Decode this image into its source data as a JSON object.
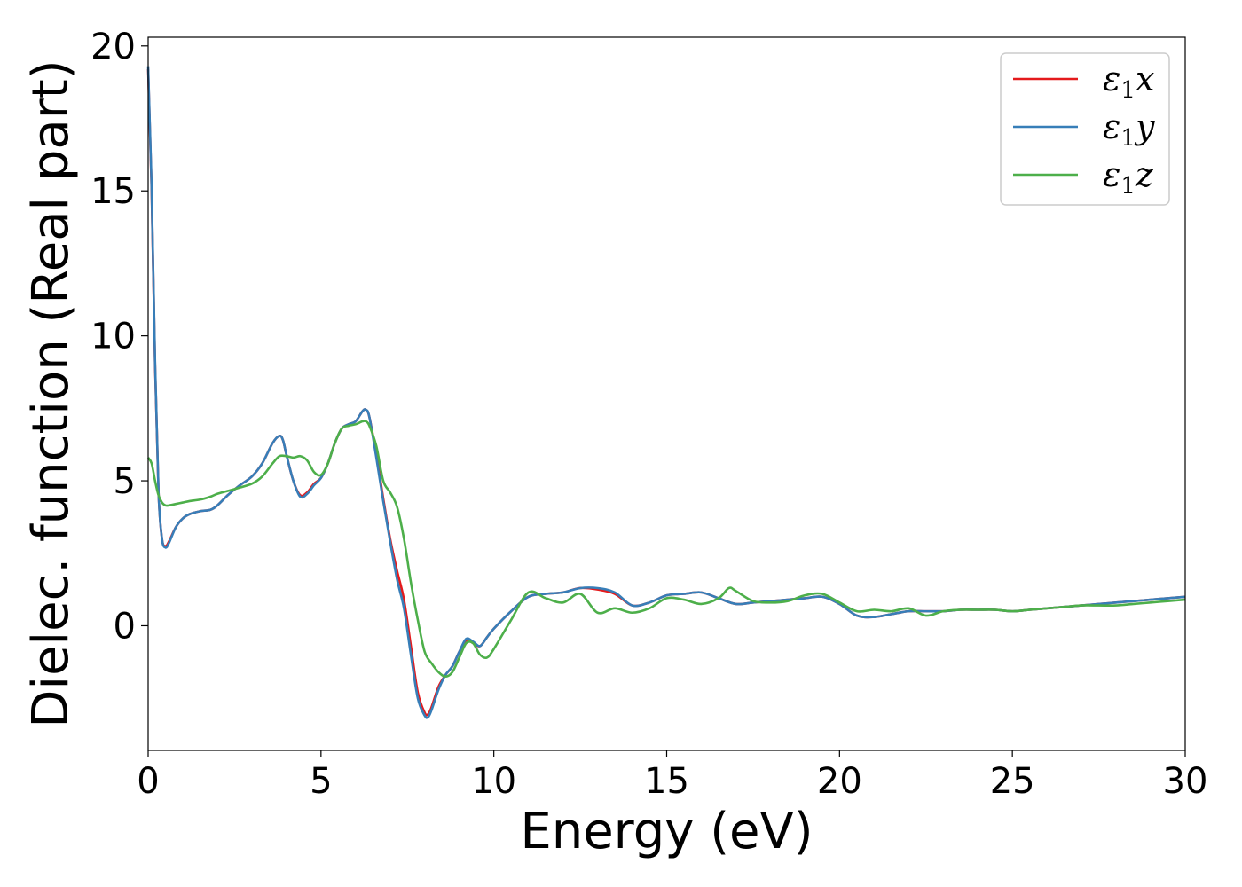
{
  "chart_data": {
    "type": "line",
    "title": "",
    "xlabel": "Energy (eV)",
    "ylabel": "Dielec. function (Real part)",
    "xlim": [
      0,
      30
    ],
    "ylim": [
      -4.3,
      20.3
    ],
    "xticks": [
      0,
      5,
      10,
      15,
      20,
      25,
      30
    ],
    "yticks": [
      0,
      5,
      10,
      15,
      20
    ],
    "grid": false,
    "legend_position": "top-right",
    "series": [
      {
        "name": "ε1x",
        "legend_main": "ε",
        "legend_sub": "1",
        "legend_tail": "x",
        "color": "#e41a1c",
        "x": [
          0,
          0.1,
          0.2,
          0.3,
          0.4,
          0.5,
          0.6,
          0.8,
          1.0,
          1.2,
          1.5,
          1.8,
          2.0,
          2.3,
          2.6,
          3.0,
          3.3,
          3.6,
          3.8,
          3.9,
          4.0,
          4.2,
          4.4,
          4.6,
          4.8,
          5.0,
          5.2,
          5.4,
          5.6,
          5.8,
          6.0,
          6.2,
          6.3,
          6.4,
          6.6,
          6.8,
          7.0,
          7.2,
          7.4,
          7.6,
          7.8,
          8.0,
          8.1,
          8.2,
          8.4,
          8.6,
          8.8,
          9.0,
          9.2,
          9.4,
          9.6,
          9.8,
          10.0,
          10.5,
          11.0,
          11.5,
          12.0,
          12.5,
          13.0,
          13.5,
          14.0,
          14.5,
          15.0,
          15.5,
          16.0,
          16.5,
          17.0,
          17.5,
          18.0,
          18.5,
          19.0,
          19.5,
          20.0,
          20.5,
          21.0,
          21.5,
          22.0,
          22.5,
          23.0,
          23.5,
          24.0,
          24.5,
          25.0,
          25.5,
          26.0,
          26.5,
          27.0,
          27.5,
          28.0,
          28.5,
          29.0,
          29.5,
          30.0
        ],
        "y": [
          19.2,
          15.0,
          9.0,
          4.6,
          3.0,
          2.75,
          2.9,
          3.4,
          3.7,
          3.85,
          3.95,
          4.0,
          4.15,
          4.5,
          4.8,
          5.15,
          5.6,
          6.3,
          6.55,
          6.4,
          5.9,
          5.0,
          4.5,
          4.6,
          4.9,
          5.1,
          5.6,
          6.3,
          6.8,
          6.95,
          7.05,
          7.4,
          7.45,
          7.2,
          5.9,
          4.4,
          3.0,
          1.9,
          0.9,
          -0.7,
          -2.3,
          -3.0,
          -3.05,
          -2.8,
          -2.1,
          -1.7,
          -1.4,
          -0.9,
          -0.5,
          -0.6,
          -0.7,
          -0.4,
          -0.1,
          0.5,
          1.0,
          1.1,
          1.15,
          1.3,
          1.25,
          1.1,
          0.7,
          0.8,
          1.05,
          1.1,
          1.15,
          0.95,
          0.75,
          0.8,
          0.85,
          0.9,
          0.95,
          1.0,
          0.75,
          0.35,
          0.3,
          0.4,
          0.5,
          0.5,
          0.5,
          0.55,
          0.55,
          0.55,
          0.5,
          0.55,
          0.6,
          0.65,
          0.7,
          0.75,
          0.8,
          0.85,
          0.9,
          0.95,
          1.0
        ]
      },
      {
        "name": "ε1y",
        "legend_main": "ε",
        "legend_sub": "1",
        "legend_tail": "y",
        "color": "#377eb8",
        "x": [
          0,
          0.1,
          0.2,
          0.3,
          0.4,
          0.5,
          0.6,
          0.8,
          1.0,
          1.2,
          1.5,
          1.8,
          2.0,
          2.3,
          2.6,
          3.0,
          3.3,
          3.6,
          3.8,
          3.9,
          4.0,
          4.2,
          4.4,
          4.6,
          4.8,
          5.0,
          5.2,
          5.4,
          5.6,
          5.8,
          6.0,
          6.2,
          6.3,
          6.4,
          6.6,
          6.8,
          7.0,
          7.2,
          7.4,
          7.6,
          7.8,
          8.0,
          8.1,
          8.2,
          8.4,
          8.6,
          8.8,
          9.0,
          9.2,
          9.4,
          9.6,
          9.8,
          10.0,
          10.5,
          11.0,
          11.5,
          12.0,
          12.5,
          13.0,
          13.5,
          14.0,
          14.5,
          15.0,
          15.5,
          16.0,
          16.5,
          17.0,
          17.5,
          18.0,
          18.5,
          19.0,
          19.5,
          20.0,
          20.5,
          21.0,
          21.5,
          22.0,
          22.5,
          23.0,
          23.5,
          24.0,
          24.5,
          25.0,
          25.5,
          26.0,
          26.5,
          27.0,
          27.5,
          28.0,
          28.5,
          29.0,
          29.5,
          30.0
        ],
        "y": [
          19.3,
          15.1,
          9.1,
          4.6,
          3.0,
          2.7,
          2.85,
          3.4,
          3.7,
          3.85,
          3.95,
          4.0,
          4.15,
          4.5,
          4.8,
          5.15,
          5.6,
          6.3,
          6.55,
          6.4,
          5.9,
          5.0,
          4.45,
          4.55,
          4.85,
          5.1,
          5.6,
          6.3,
          6.8,
          6.95,
          7.05,
          7.4,
          7.45,
          7.2,
          5.8,
          4.3,
          2.9,
          1.6,
          0.6,
          -1.0,
          -2.5,
          -3.1,
          -3.15,
          -2.9,
          -2.2,
          -1.7,
          -1.4,
          -0.9,
          -0.45,
          -0.55,
          -0.7,
          -0.4,
          -0.1,
          0.5,
          1.0,
          1.1,
          1.15,
          1.3,
          1.3,
          1.15,
          0.7,
          0.8,
          1.05,
          1.1,
          1.15,
          0.95,
          0.75,
          0.8,
          0.85,
          0.9,
          0.95,
          1.0,
          0.75,
          0.35,
          0.3,
          0.4,
          0.5,
          0.5,
          0.5,
          0.55,
          0.55,
          0.55,
          0.5,
          0.55,
          0.6,
          0.65,
          0.7,
          0.75,
          0.8,
          0.85,
          0.9,
          0.95,
          1.0
        ]
      },
      {
        "name": "ε1z",
        "legend_main": "ε",
        "legend_sub": "1",
        "legend_tail": "z",
        "color": "#4daf4a",
        "x": [
          0,
          0.1,
          0.2,
          0.3,
          0.4,
          0.5,
          0.6,
          0.8,
          1.0,
          1.2,
          1.5,
          1.8,
          2.0,
          2.3,
          2.6,
          3.0,
          3.3,
          3.6,
          3.8,
          4.0,
          4.2,
          4.4,
          4.6,
          4.8,
          5.0,
          5.2,
          5.4,
          5.6,
          5.8,
          6.0,
          6.2,
          6.3,
          6.4,
          6.6,
          6.8,
          7.0,
          7.2,
          7.4,
          7.6,
          7.8,
          8.0,
          8.2,
          8.4,
          8.6,
          8.8,
          9.0,
          9.2,
          9.4,
          9.6,
          9.8,
          10.0,
          10.5,
          11.0,
          11.5,
          12.0,
          12.5,
          13.0,
          13.5,
          14.0,
          14.5,
          15.0,
          15.5,
          16.0,
          16.5,
          16.8,
          17.0,
          17.5,
          18.0,
          18.5,
          19.0,
          19.5,
          20.0,
          20.5,
          21.0,
          21.5,
          22.0,
          22.5,
          23.0,
          23.5,
          24.0,
          24.5,
          25.0,
          25.5,
          26.0,
          26.5,
          27.0,
          27.5,
          28.0,
          28.5,
          29.0,
          29.5,
          30.0
        ],
        "y": [
          5.8,
          5.6,
          5.0,
          4.5,
          4.25,
          4.15,
          4.15,
          4.2,
          4.25,
          4.3,
          4.35,
          4.45,
          4.55,
          4.65,
          4.75,
          4.9,
          5.15,
          5.6,
          5.85,
          5.85,
          5.8,
          5.85,
          5.7,
          5.3,
          5.2,
          5.6,
          6.3,
          6.8,
          6.9,
          6.95,
          7.05,
          7.05,
          6.9,
          6.2,
          5.0,
          4.6,
          4.1,
          3.0,
          1.5,
          0.2,
          -0.9,
          -1.3,
          -1.6,
          -1.75,
          -1.6,
          -1.1,
          -0.6,
          -0.6,
          -1.0,
          -1.1,
          -0.8,
          0.2,
          1.15,
          0.95,
          0.8,
          1.1,
          0.45,
          0.6,
          0.45,
          0.6,
          0.95,
          0.9,
          0.75,
          0.95,
          1.3,
          1.2,
          0.85,
          0.8,
          0.85,
          1.05,
          1.1,
          0.8,
          0.5,
          0.55,
          0.5,
          0.6,
          0.35,
          0.5,
          0.55,
          0.55,
          0.55,
          0.5,
          0.55,
          0.6,
          0.65,
          0.7,
          0.7,
          0.7,
          0.75,
          0.8,
          0.85,
          0.9
        ]
      }
    ]
  }
}
